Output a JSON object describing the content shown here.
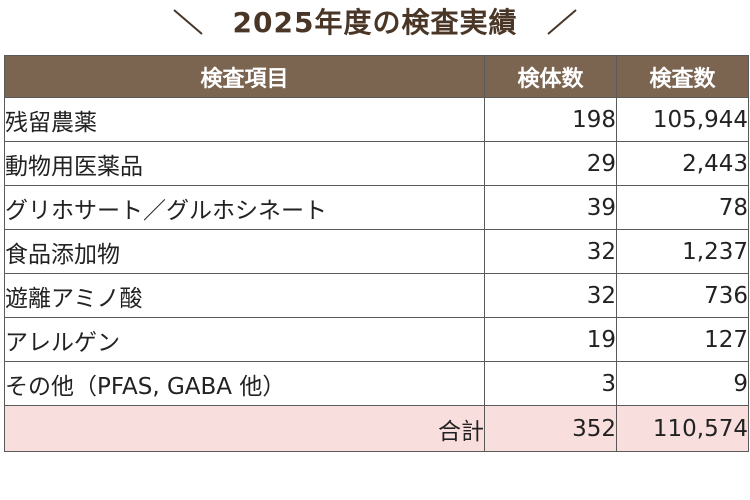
{
  "title": "2025年度の検査実績",
  "colors": {
    "header_bg": "#7b6450",
    "total_bg": "#f9dede",
    "title_color": "#4a3626"
  },
  "table": {
    "headers": [
      "検査項目",
      "検体数",
      "検査数"
    ],
    "rows": [
      {
        "item": "残留農薬",
        "samples": "198",
        "tests": "105,944"
      },
      {
        "item": "動物用医薬品",
        "samples": "29",
        "tests": "2,443"
      },
      {
        "item": "グリホサート／グルホシネート",
        "samples": "39",
        "tests": "78"
      },
      {
        "item": "食品添加物",
        "samples": "32",
        "tests": "1,237"
      },
      {
        "item": "遊離アミノ酸",
        "samples": "32",
        "tests": "736"
      },
      {
        "item": "アレルゲン",
        "samples": "19",
        "tests": "127"
      },
      {
        "item": "その他（PFAS, GABA 他）",
        "samples": "3",
        "tests": "9"
      }
    ],
    "total": {
      "label": "合計",
      "samples": "352",
      "tests": "110,574"
    }
  }
}
